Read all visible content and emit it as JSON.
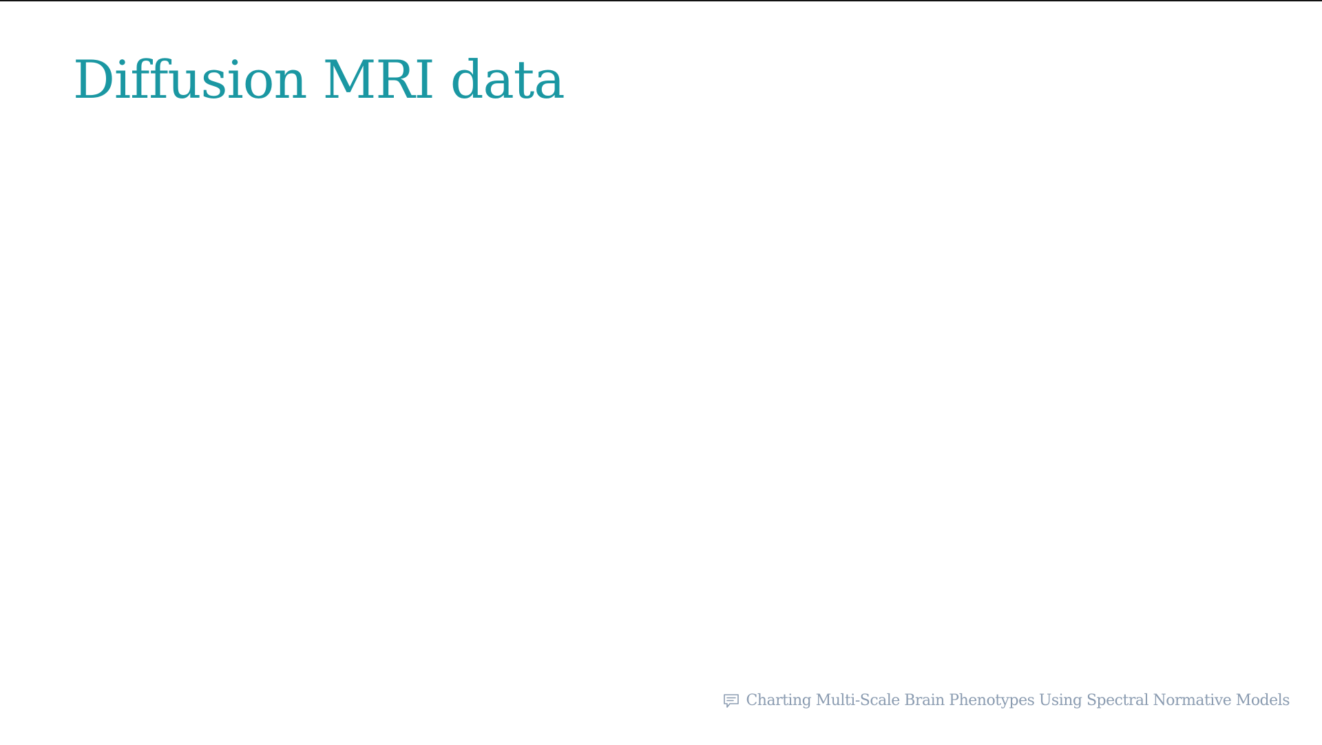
{
  "slide": {
    "title": "Diffusion MRI data",
    "footer_text": "Charting Multi-Scale Brain Phenotypes Using Spectral Normative Models",
    "footer_icon": "comment-icon"
  },
  "colors": {
    "title": "#1a97a2",
    "footer": "#8a9bb0",
    "background": "#ffffff",
    "top_rule": "#111111"
  }
}
